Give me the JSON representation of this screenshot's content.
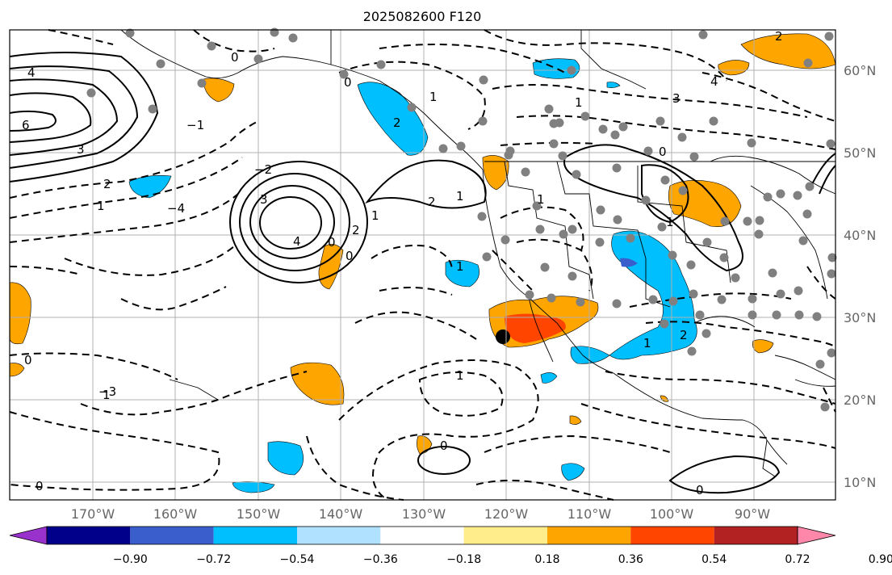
{
  "title": "2025082600 F120",
  "lat_labels": [
    "60°N",
    "50°N",
    "40°N",
    "30°N",
    "20°N",
    "10°N"
  ],
  "lon_labels": [
    "170°W",
    "160°W",
    "150°W",
    "140°W",
    "130°W",
    "120°W",
    "110°W",
    "100°W",
    "90°W"
  ],
  "colorbar": {
    "ticks": [
      "−0.90",
      "−0.72",
      "−0.54",
      "−0.36",
      "−0.18",
      "0.18",
      "0.36",
      "0.54",
      "0.72",
      "0.90"
    ],
    "colors": [
      "#9932CC",
      "#00008B",
      "#3A5FCD",
      "#00BFFF",
      "#B0E2FF",
      "#FFFFFF",
      "#FFEC8B",
      "#FFA500",
      "#FF4500",
      "#B22222",
      "#FF88AA"
    ]
  },
  "contour_labels": [
    "4",
    "6",
    "3",
    "2",
    "1",
    "0",
    "−1",
    "−2",
    "−3",
    "−4",
    "4",
    "3",
    "2",
    "1",
    "0",
    "0",
    "1",
    "2",
    "1",
    "2",
    "0",
    "1",
    "1",
    "1",
    "1",
    "2",
    "0",
    "1",
    "0",
    "0",
    "4",
    "3",
    "1",
    "1",
    "2",
    "0",
    "0"
  ],
  "colors": {
    "orange": "#FFA500",
    "red": "#FF4500",
    "cyan": "#00BFFF",
    "blue": "#3A5FCD",
    "gray": "#808080",
    "grid": "#B0B0B0"
  }
}
